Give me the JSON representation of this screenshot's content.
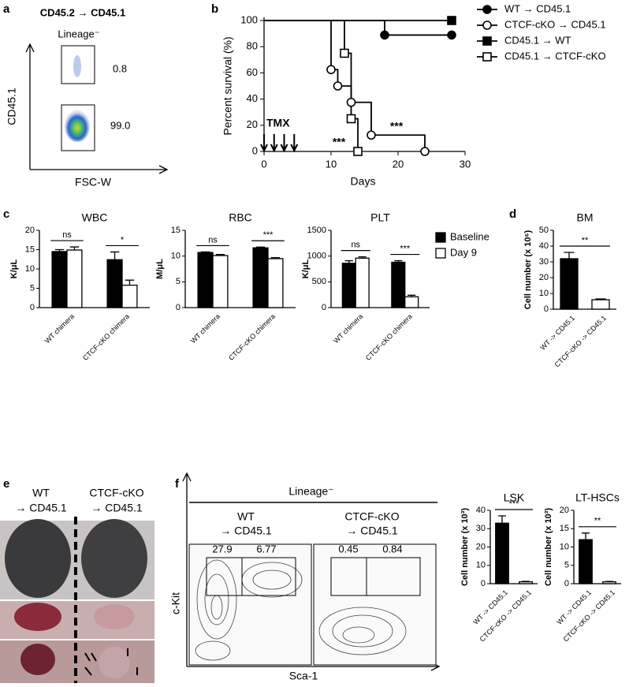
{
  "panel_labels": [
    "a",
    "b",
    "c",
    "d",
    "e",
    "f"
  ],
  "panel_a": {
    "title": "CD45.2 → CD45.1",
    "gate_label": "Lineage⁻",
    "gates": [
      "0.8",
      "99.0"
    ],
    "y_label": "CD45.1",
    "x_label": "FSC-W"
  },
  "panel_e": {
    "left": [
      "WT",
      "→ CD45.1"
    ],
    "right": [
      "CTCF-cKO",
      "→ CD45.1"
    ]
  },
  "panel_f": {
    "title": "Lineage⁻",
    "groups": [
      {
        "label": [
          "WT",
          "→ CD45.1"
        ],
        "gates": [
          "27.9",
          "6.77"
        ]
      },
      {
        "label": [
          "CTCF-cKO",
          "→ CD45.1"
        ],
        "gates": [
          "0.45",
          "0.84"
        ]
      }
    ],
    "y_label": "c-Kit",
    "x_label": "Sca-1"
  },
  "chart_data": [
    {
      "type": "line",
      "step": true,
      "x_label": "Days",
      "y_label": "Percent survival (%)",
      "xlim": [
        0,
        30
      ],
      "xticks": [
        0,
        10,
        20,
        30
      ],
      "ylim": [
        0,
        100
      ],
      "yticks": [
        0,
        20,
        40,
        60,
        80,
        100
      ],
      "series": [
        {
          "name": "WT → CD45.1",
          "color": "#000000",
          "marker": "circle",
          "filled": true,
          "x": [
            0,
            18,
            28
          ],
          "values": [
            100,
            88.9,
            88.9
          ]
        },
        {
          "name": "CTCF-cKO → CD45.1",
          "color": "#000000",
          "marker": "circle",
          "filled": false,
          "x": [
            0,
            10,
            11,
            13,
            16,
            24
          ],
          "values": [
            100,
            62.5,
            50,
            37.5,
            12.5,
            0
          ]
        },
        {
          "name": "CD45.1 → WT",
          "color": "#000000",
          "marker": "square",
          "filled": true,
          "x": [
            0,
            28
          ],
          "values": [
            100,
            100
          ]
        },
        {
          "name": "CD45.1 → CTCF-cKO",
          "color": "#000000",
          "marker": "square",
          "filled": false,
          "x": [
            0,
            12,
            13,
            14
          ],
          "values": [
            100,
            75,
            25,
            0
          ]
        }
      ],
      "treatment": {
        "label": "TMX",
        "days": [
          0,
          1.5,
          3,
          4.5
        ]
      },
      "annotations": [
        "***",
        "***"
      ]
    },
    {
      "type": "bar",
      "title": "WBC",
      "y_label": "K/μL",
      "categories": [
        "WT chimera",
        "CTCF-cKO chimera"
      ],
      "series": [
        {
          "name": "Baseline",
          "color": "#000000",
          "values": [
            14.5,
            12.4
          ],
          "errors": [
            0.5,
            2.0
          ]
        },
        {
          "name": "Day 9",
          "color": "#ffffff",
          "values": [
            14.9,
            5.8
          ],
          "errors": [
            0.8,
            1.3
          ]
        }
      ],
      "ylim": [
        0,
        20
      ],
      "yticks": [
        0,
        5,
        10,
        15,
        20
      ],
      "significance": [
        "ns",
        "*"
      ]
    },
    {
      "type": "bar",
      "title": "RBC",
      "y_label": "M/μL",
      "categories": [
        "WT chimera",
        "CTCF-cKO chimera"
      ],
      "series": [
        {
          "name": "Baseline",
          "color": "#000000",
          "values": [
            10.7,
            11.6
          ],
          "errors": [
            0.1,
            0.15
          ]
        },
        {
          "name": "Day 9",
          "color": "#ffffff",
          "values": [
            10.1,
            9.5
          ],
          "errors": [
            0.2,
            0.2
          ]
        }
      ],
      "ylim": [
        0,
        15
      ],
      "yticks": [
        0,
        5,
        10,
        15
      ],
      "significance": [
        "ns",
        "***"
      ]
    },
    {
      "type": "bar",
      "title": "PLT",
      "y_label": "K/μL",
      "categories": [
        "WT chimera",
        "CTCF-cKO chimera"
      ],
      "series": [
        {
          "name": "Baseline",
          "color": "#000000",
          "values": [
            860,
            880
          ],
          "errors": [
            50,
            30
          ]
        },
        {
          "name": "Day 9",
          "color": "#ffffff",
          "values": [
            960,
            210
          ],
          "errors": [
            25,
            30
          ]
        }
      ],
      "ylim": [
        0,
        1500
      ],
      "yticks": [
        0,
        500,
        1000,
        1500
      ],
      "significance": [
        "ns",
        "***"
      ],
      "legend": "right"
    },
    {
      "type": "bar",
      "title": "BM",
      "y_label": "Cell number (x 10⁶)",
      "categories": [
        "WT -> CD45.1",
        "CTCF-cKO -> CD45.1"
      ],
      "values": [
        32,
        6
      ],
      "errors": [
        4,
        0.5
      ],
      "colors": [
        "#000000",
        "#ffffff"
      ],
      "ylim": [
        0,
        50
      ],
      "yticks": [
        0,
        10,
        20,
        30,
        40,
        50
      ],
      "significance": [
        "**"
      ]
    },
    {
      "type": "bar",
      "title": "LSK",
      "y_label": "Cell number (x 10³)",
      "categories": [
        "WT -> CD45.1",
        "CTCF-cKO -> CD45.1"
      ],
      "values": [
        33,
        1
      ],
      "errors": [
        4,
        0.3
      ],
      "colors": [
        "#000000",
        "#ffffff"
      ],
      "ylim": [
        0,
        40
      ],
      "yticks": [
        0,
        10,
        20,
        30,
        40
      ],
      "significance": [
        "***"
      ]
    },
    {
      "type": "bar",
      "title": "LT-HSCs",
      "y_label": "Cell number (x 10³)",
      "categories": [
        "WT -> CD45.1",
        "CTCF-cKO -> CD45.1"
      ],
      "values": [
        12,
        0.5
      ],
      "errors": [
        1.8,
        0.1
      ],
      "colors": [
        "#000000",
        "#ffffff"
      ],
      "ylim": [
        0,
        20
      ],
      "yticks": [
        0,
        5,
        10,
        15,
        20
      ],
      "significance": [
        "**"
      ]
    }
  ]
}
